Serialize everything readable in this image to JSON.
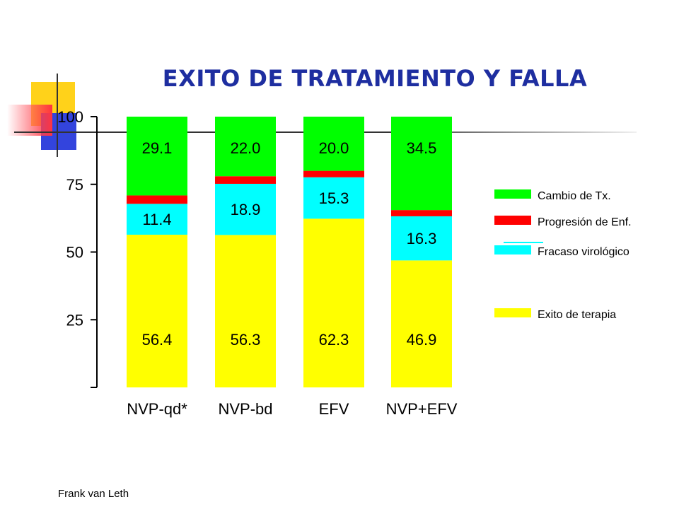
{
  "slide": {
    "title": "EXITO DE TRATAMIENTO Y FALLA",
    "author": "Frank van Leth"
  },
  "chart_data": {
    "type": "bar",
    "stacked": true,
    "categories": [
      "NVP-qd*",
      "NVP-bd",
      "EFV",
      "NVP+EFV"
    ],
    "series": [
      {
        "name": "Exito de terapia",
        "color": "#ffff00",
        "values": [
          56.4,
          56.3,
          62.3,
          46.9
        ],
        "labels": [
          "56.4",
          "56.3",
          "62.3",
          "46.9"
        ]
      },
      {
        "name": "Fracaso virológico",
        "color": "#00ffff",
        "values": [
          11.4,
          18.9,
          15.3,
          16.3
        ],
        "labels": [
          "11.4",
          "18.9",
          "15.3",
          "16.3"
        ]
      },
      {
        "name": "Progresión de Enf.",
        "color": "#ff0000",
        "values": [
          3.1,
          2.8,
          2.4,
          2.3
        ],
        "labels": [
          "",
          "",
          "",
          ""
        ]
      },
      {
        "name": "Cambio de Tx.",
        "color": "#00ff00",
        "values": [
          29.1,
          22.0,
          20.0,
          34.5
        ],
        "labels": [
          "29.1",
          "22.0",
          "20.0",
          "34.5"
        ]
      }
    ],
    "yticks": [
      "25",
      "50",
      "75",
      "100"
    ],
    "ytick_values": [
      25,
      50,
      75,
      100
    ],
    "ylim": [
      0,
      100
    ],
    "legend_order": [
      "Cambio de Tx.",
      "Progresión de Enf.",
      "Fracaso virológico",
      "Exito de terapia"
    ],
    "legend_position": "right",
    "grid": false
  }
}
